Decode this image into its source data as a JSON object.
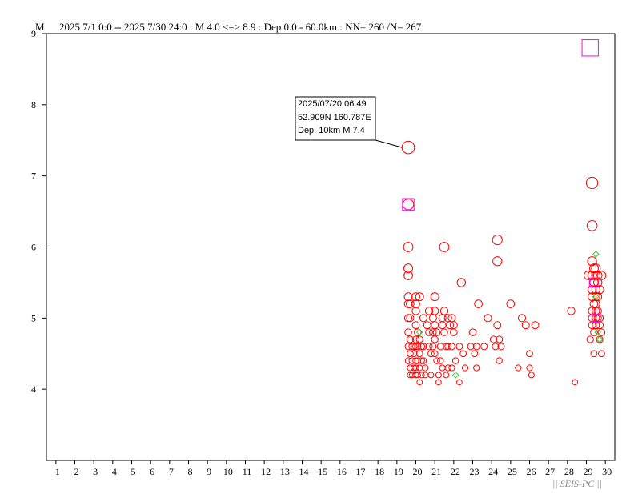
{
  "header": {
    "y_unit": "M",
    "query": "2025 7/1 0:0 -- 2025 7/30 24:0  : M 4.0 <=> 8.9   :  Dep 0.0 - 60.0km :  NN= 260 /N= 267"
  },
  "annotation": {
    "line1": "2025/07/20 06:49",
    "line2": "52.909N   160.787E",
    "line3": "Dep. 10km    M 7.4",
    "target_day": 19.6,
    "target_mag": 7.4
  },
  "watermark": "|| SEIS-PC ||",
  "colors": {
    "shallow": "#ff0000",
    "intermediate": "#33cc33",
    "highlight": "#ff00ff",
    "axis": "#000000"
  },
  "chart_data": {
    "type": "scatter",
    "title": "",
    "xlabel": "",
    "ylabel": "M",
    "xlim": [
      0.5,
      30.5
    ],
    "ylim": [
      3.0,
      9.0
    ],
    "x_ticks": [
      1,
      2,
      3,
      4,
      5,
      6,
      7,
      8,
      9,
      10,
      11,
      12,
      13,
      14,
      15,
      16,
      17,
      18,
      19,
      20,
      21,
      22,
      23,
      24,
      25,
      26,
      27,
      28,
      29,
      30
    ],
    "y_ticks": [
      4,
      5,
      6,
      7,
      8,
      9
    ],
    "grid": false,
    "legend": "none",
    "marker_size": "circle area scales with magnitude",
    "series": [
      {
        "marker": "circle",
        "color": "#ff0000",
        "points": [
          [
            19.6,
            7.4
          ],
          [
            19.6,
            6.6
          ],
          [
            19.6,
            6.0
          ],
          [
            19.6,
            5.7
          ],
          [
            19.6,
            5.6
          ],
          [
            19.6,
            5.3
          ],
          [
            19.6,
            5.2
          ],
          [
            19.7,
            5.2
          ],
          [
            19.6,
            5.0
          ],
          [
            19.7,
            5.0
          ],
          [
            19.6,
            4.8
          ],
          [
            19.7,
            4.7
          ],
          [
            19.6,
            4.6
          ],
          [
            19.8,
            4.6
          ],
          [
            19.7,
            4.5
          ],
          [
            19.6,
            4.4
          ],
          [
            19.8,
            4.4
          ],
          [
            19.7,
            4.3
          ],
          [
            19.8,
            4.2
          ],
          [
            19.7,
            4.2
          ],
          [
            19.9,
            4.6
          ],
          [
            19.9,
            4.5
          ],
          [
            19.9,
            4.3
          ],
          [
            20.0,
            5.3
          ],
          [
            20.0,
            5.2
          ],
          [
            20.0,
            5.1
          ],
          [
            20.0,
            4.9
          ],
          [
            20.0,
            4.7
          ],
          [
            20.0,
            4.6
          ],
          [
            20.0,
            4.4
          ],
          [
            20.0,
            4.3
          ],
          [
            20.0,
            4.2
          ],
          [
            20.1,
            4.8
          ],
          [
            20.1,
            4.6
          ],
          [
            20.1,
            4.4
          ],
          [
            20.1,
            4.2
          ],
          [
            20.2,
            5.3
          ],
          [
            20.2,
            4.7
          ],
          [
            20.2,
            4.5
          ],
          [
            20.2,
            4.3
          ],
          [
            20.2,
            4.1
          ],
          [
            20.3,
            4.6
          ],
          [
            20.3,
            4.4
          ],
          [
            20.3,
            4.2
          ],
          [
            20.4,
            5.0
          ],
          [
            20.4,
            4.6
          ],
          [
            20.4,
            4.4
          ],
          [
            20.5,
            4.3
          ],
          [
            20.5,
            4.2
          ],
          [
            20.6,
            4.9
          ],
          [
            20.7,
            5.1
          ],
          [
            20.7,
            4.8
          ],
          [
            20.7,
            4.6
          ],
          [
            20.8,
            4.5
          ],
          [
            20.8,
            4.2
          ],
          [
            20.9,
            5.0
          ],
          [
            20.9,
            4.8
          ],
          [
            20.9,
            4.6
          ],
          [
            21.0,
            5.3
          ],
          [
            21.0,
            5.1
          ],
          [
            21.0,
            4.9
          ],
          [
            21.0,
            4.7
          ],
          [
            21.0,
            4.5
          ],
          [
            21.1,
            4.8
          ],
          [
            21.1,
            4.4
          ],
          [
            21.2,
            4.2
          ],
          [
            21.2,
            4.1
          ],
          [
            21.3,
            4.6
          ],
          [
            21.3,
            4.4
          ],
          [
            21.4,
            5.0
          ],
          [
            21.4,
            4.9
          ],
          [
            21.4,
            4.3
          ],
          [
            21.5,
            6.0
          ],
          [
            21.5,
            5.1
          ],
          [
            21.5,
            4.8
          ],
          [
            21.6,
            4.6
          ],
          [
            21.6,
            4.2
          ],
          [
            21.7,
            5.0
          ],
          [
            21.7,
            4.6
          ],
          [
            21.7,
            4.3
          ],
          [
            21.8,
            4.9
          ],
          [
            21.9,
            5.0
          ],
          [
            21.9,
            4.6
          ],
          [
            21.9,
            4.3
          ],
          [
            22.0,
            4.9
          ],
          [
            22.0,
            4.8
          ],
          [
            22.1,
            4.4
          ],
          [
            22.3,
            4.6
          ],
          [
            22.3,
            4.1
          ],
          [
            22.4,
            5.5
          ],
          [
            22.5,
            4.5
          ],
          [
            22.6,
            4.3
          ],
          [
            22.9,
            4.6
          ],
          [
            23.0,
            4.8
          ],
          [
            23.1,
            4.5
          ],
          [
            23.2,
            4.6
          ],
          [
            23.2,
            4.3
          ],
          [
            23.3,
            5.2
          ],
          [
            23.6,
            4.6
          ],
          [
            23.8,
            5.0
          ],
          [
            24.1,
            4.7
          ],
          [
            24.2,
            4.6
          ],
          [
            24.3,
            6.1
          ],
          [
            24.3,
            5.8
          ],
          [
            24.3,
            4.9
          ],
          [
            24.4,
            4.7
          ],
          [
            24.4,
            4.4
          ],
          [
            24.5,
            4.6
          ],
          [
            25.0,
            5.2
          ],
          [
            25.4,
            4.3
          ],
          [
            25.6,
            5.0
          ],
          [
            25.8,
            4.9
          ],
          [
            26.0,
            4.5
          ],
          [
            26.0,
            4.3
          ],
          [
            26.1,
            4.2
          ],
          [
            26.3,
            4.9
          ],
          [
            28.2,
            5.1
          ],
          [
            28.4,
            4.1
          ],
          [
            29.1,
            5.6
          ],
          [
            29.2,
            4.7
          ],
          [
            29.3,
            6.9
          ],
          [
            29.3,
            6.3
          ],
          [
            29.3,
            5.8
          ],
          [
            29.3,
            5.6
          ],
          [
            29.3,
            5.4
          ],
          [
            29.3,
            5.3
          ],
          [
            29.3,
            5.1
          ],
          [
            29.3,
            5.0
          ],
          [
            29.3,
            4.9
          ],
          [
            29.4,
            5.7
          ],
          [
            29.4,
            5.5
          ],
          [
            29.4,
            5.2
          ],
          [
            29.4,
            4.8
          ],
          [
            29.4,
            4.5
          ],
          [
            29.5,
            5.7
          ],
          [
            29.5,
            5.6
          ],
          [
            29.5,
            5.4
          ],
          [
            29.5,
            5.3
          ],
          [
            29.5,
            5.2
          ],
          [
            29.5,
            5.1
          ],
          [
            29.5,
            5.0
          ],
          [
            29.5,
            4.9
          ],
          [
            29.6,
            5.6
          ],
          [
            29.6,
            5.5
          ],
          [
            29.6,
            5.3
          ],
          [
            29.6,
            5.1
          ],
          [
            29.6,
            5.0
          ],
          [
            29.7,
            5.4
          ],
          [
            29.7,
            5.0
          ],
          [
            29.7,
            4.9
          ],
          [
            29.7,
            4.7
          ],
          [
            29.8,
            5.6
          ],
          [
            29.8,
            4.8
          ],
          [
            29.8,
            4.5
          ]
        ]
      },
      {
        "marker": "diamond",
        "color": "#33cc33",
        "points": [
          [
            22.1,
            4.2
          ],
          [
            20.2,
            4.8
          ],
          [
            29.5,
            5.9
          ],
          [
            29.5,
            5.3
          ],
          [
            29.6,
            4.8
          ],
          [
            29.7,
            4.7
          ]
        ]
      },
      {
        "marker": "square",
        "color": "#ff00ff",
        "points": [
          [
            19.6,
            6.6
          ],
          [
            29.2,
            8.8
          ],
          [
            29.4,
            5.5
          ],
          [
            29.5,
            5.0
          ]
        ]
      }
    ]
  }
}
